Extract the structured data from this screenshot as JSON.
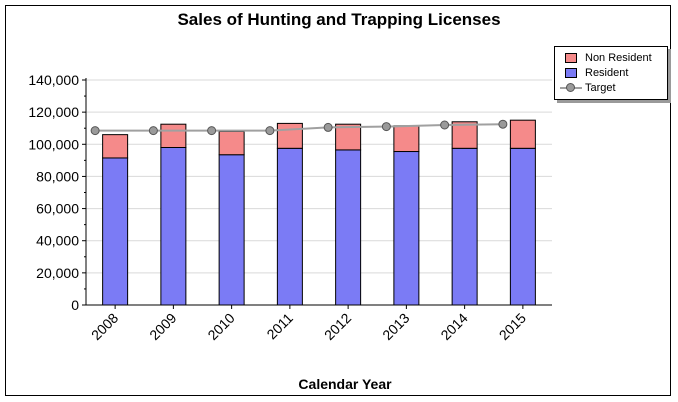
{
  "chart_data": {
    "type": "bar",
    "stacked": true,
    "title": "Sales of Hunting and Trapping Licenses",
    "xlabel": "Calendar Year",
    "ylabel": "",
    "categories": [
      "2008",
      "2009",
      "2010",
      "2011",
      "2012",
      "2013",
      "2014",
      "2015"
    ],
    "ylim": [
      0,
      140000
    ],
    "yticks": [
      0,
      20000,
      40000,
      60000,
      80000,
      100000,
      120000,
      140000
    ],
    "ytick_labels": [
      "0",
      "20,000",
      "40,000",
      "60,000",
      "80,000",
      "100,000",
      "120,000",
      "140,000"
    ],
    "grid": true,
    "legend_position": "top-right",
    "series": [
      {
        "name": "Resident",
        "kind": "bar",
        "color": "#7b7bf5",
        "values": [
          91500,
          98000,
          93500,
          97500,
          96500,
          95500,
          97500,
          97500
        ]
      },
      {
        "name": "Non Resident",
        "kind": "bar",
        "color": "#f58a8a",
        "values": [
          14500,
          14500,
          14500,
          15500,
          16000,
          16000,
          16500,
          17500
        ]
      },
      {
        "name": "Target",
        "kind": "line",
        "color": "#9a9a9a",
        "values": [
          108500,
          108500,
          108500,
          108500,
          110500,
          111000,
          112000,
          112500
        ]
      }
    ]
  }
}
